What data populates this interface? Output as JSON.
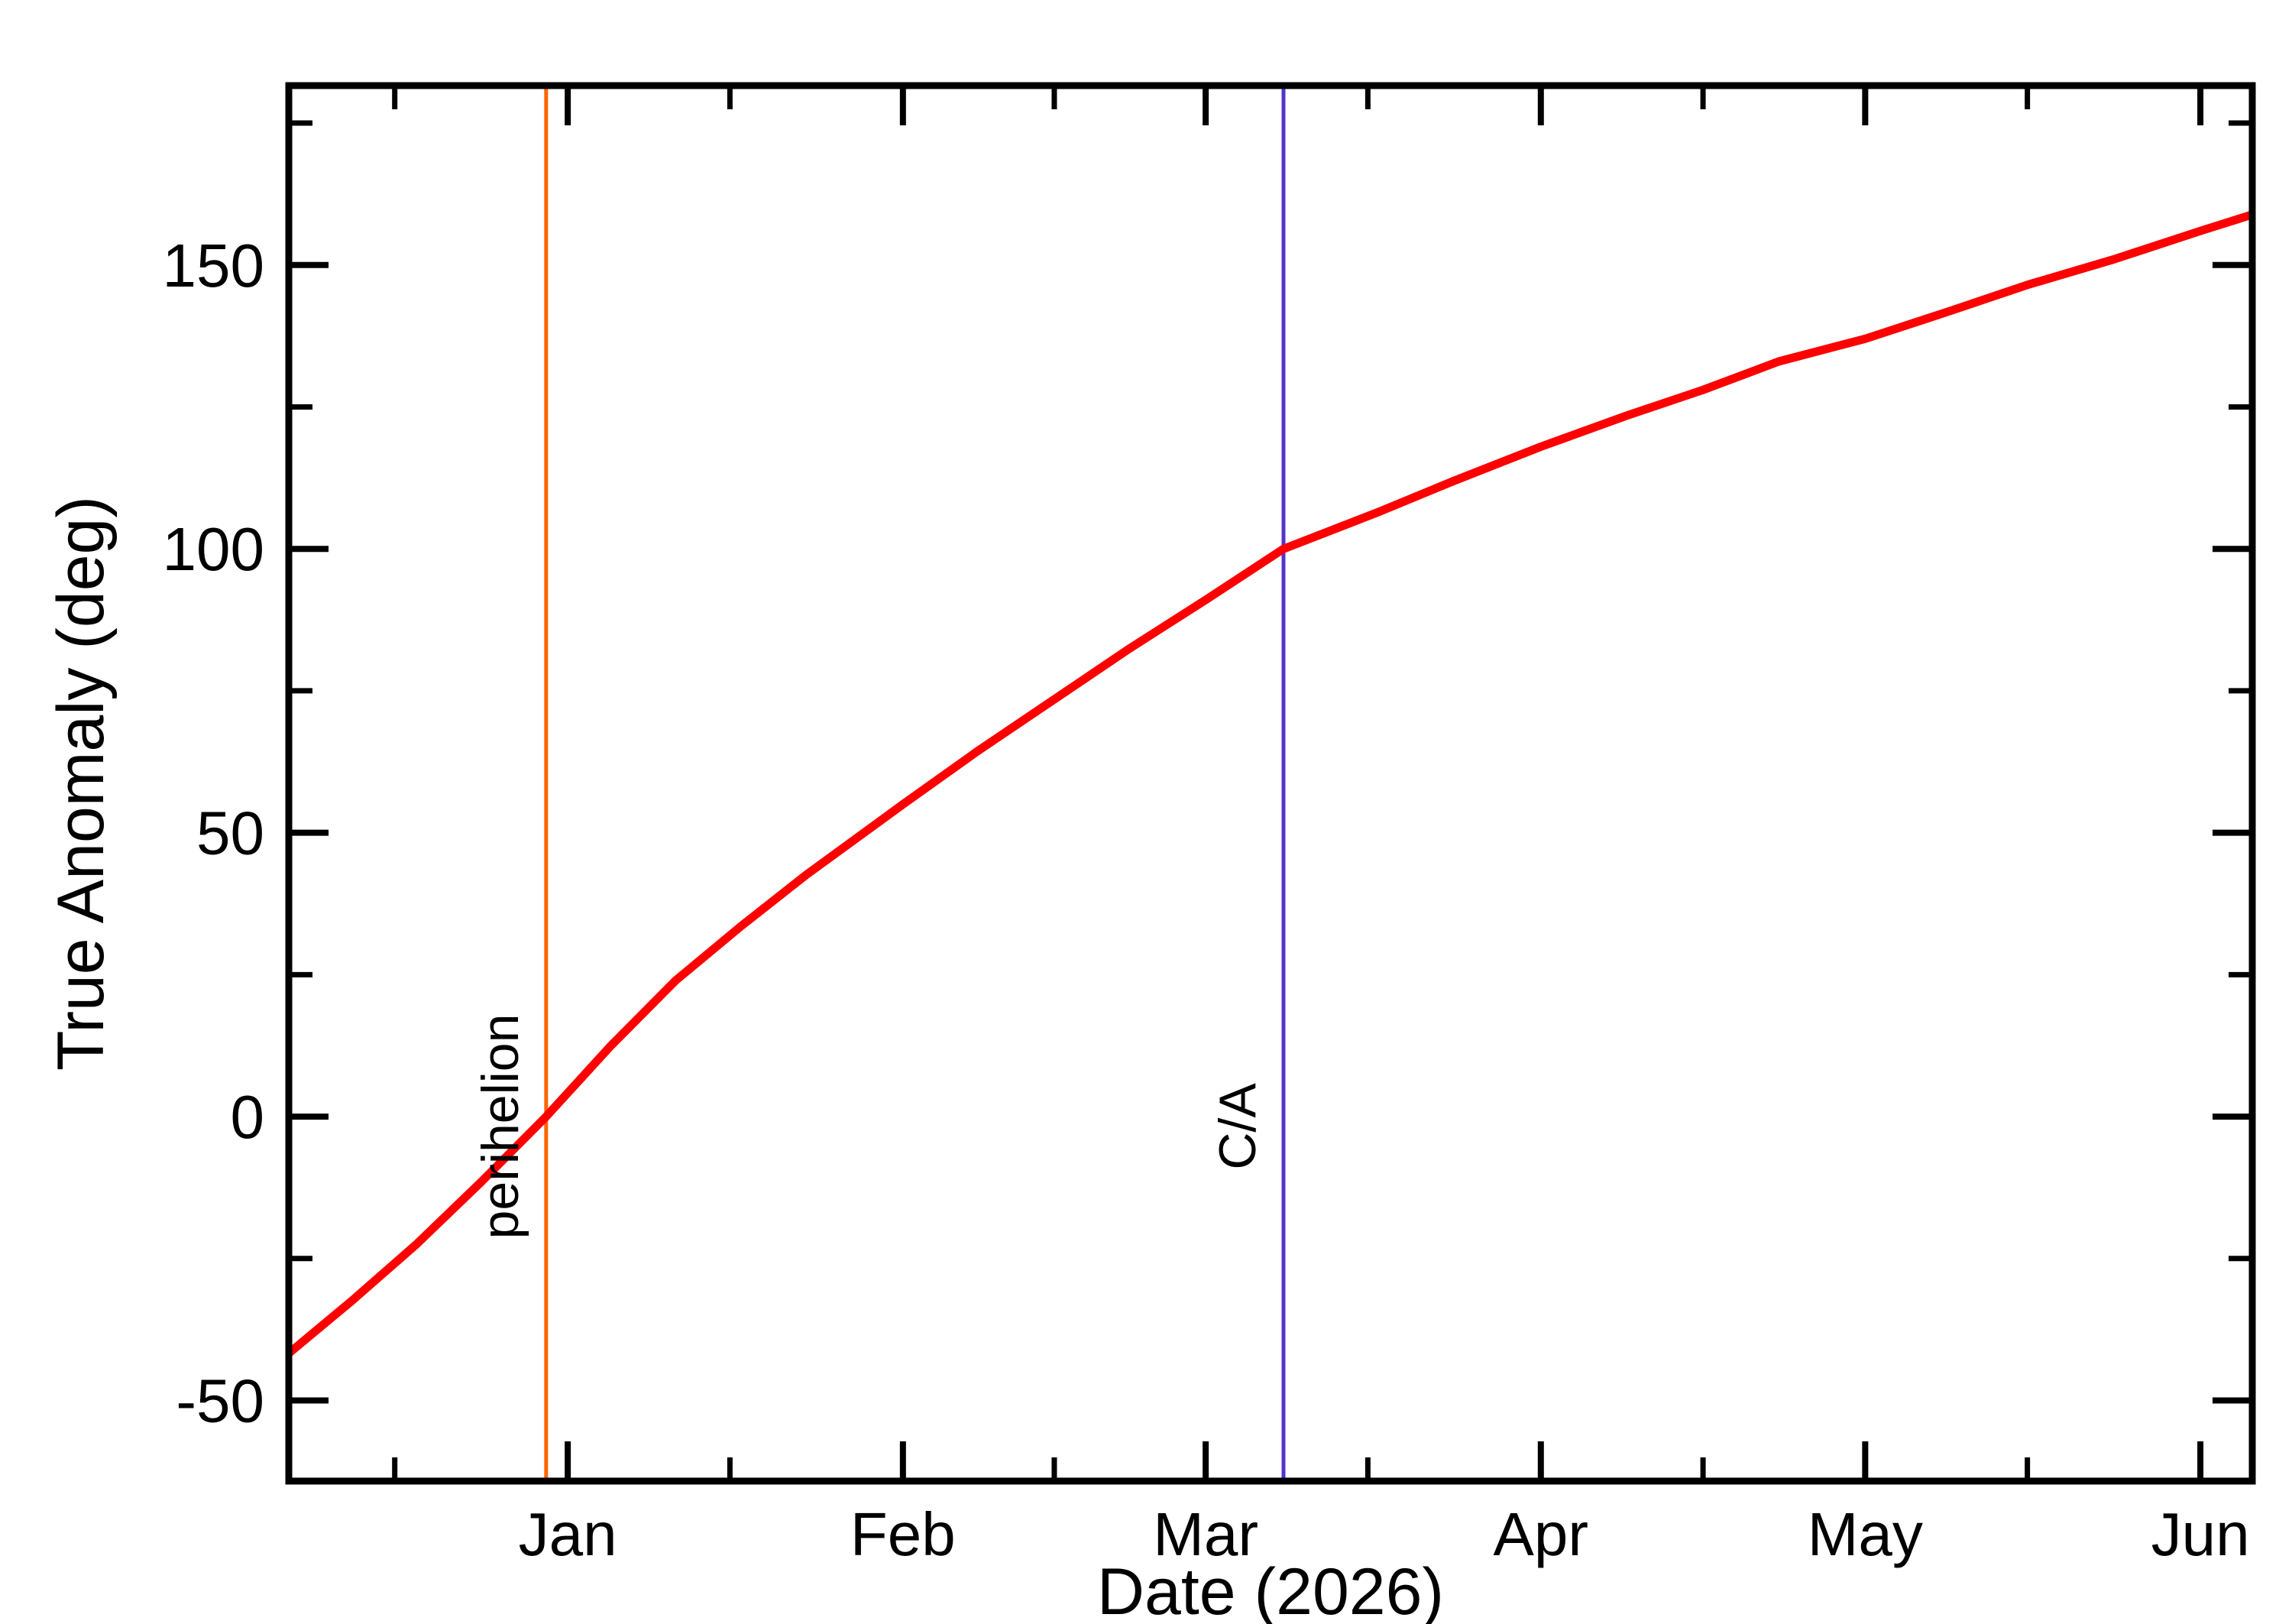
{
  "chart_data": {
    "type": "line",
    "title": "",
    "xlabel": "Date (2026)",
    "ylabel": "True Anomaly (deg)",
    "x_unit": "days from 2026-01-01",
    "xlim": [
      -25.8,
      155.8
    ],
    "ylim": [
      -64.2,
      181.6
    ],
    "grid": false,
    "legend": false,
    "background": "#ffffff",
    "frame_color": "#000000",
    "x_major_ticks": {
      "days": [
        0,
        31,
        59,
        90,
        120,
        151
      ],
      "labels": [
        "Jan",
        "Feb",
        "Mar",
        "Apr",
        "May",
        "Jun"
      ]
    },
    "x_minor_ticks_days": [
      -16,
      15,
      45,
      74,
      105,
      135
    ],
    "y_major_ticks": {
      "values": [
        -50,
        0,
        50,
        100,
        150
      ],
      "labels": [
        "-50",
        "0",
        "50",
        "100",
        "150"
      ]
    },
    "y_minor_ticks_values": [
      -25,
      25,
      75,
      125,
      175
    ],
    "series": [
      {
        "name": "true-anomaly",
        "color": "#ff0000",
        "x_days": [
          -26,
          -20,
          -14,
          -8,
          -2,
          4,
          10,
          16,
          22,
          31,
          38,
          45,
          52,
          59,
          66.2,
          75,
          82,
          90,
          98,
          105,
          112,
          120,
          128,
          135,
          143,
          151,
          156
        ],
        "y_deg": [
          -42,
          -32.5,
          -22.5,
          -11.5,
          0,
          12.5,
          24,
          33.5,
          42.5,
          55,
          64.5,
          73.5,
          82.5,
          91,
          100,
          106.5,
          112,
          118,
          123.5,
          128,
          133,
          137,
          142,
          146.5,
          151,
          156,
          159
        ]
      }
    ],
    "annotations": [
      {
        "name": "perihelion",
        "label": "perihelion",
        "day": -2,
        "color": "#ff6600"
      },
      {
        "name": "close-approach",
        "label": "C/A",
        "day": 66.2,
        "color": "#5533cc"
      }
    ]
  }
}
